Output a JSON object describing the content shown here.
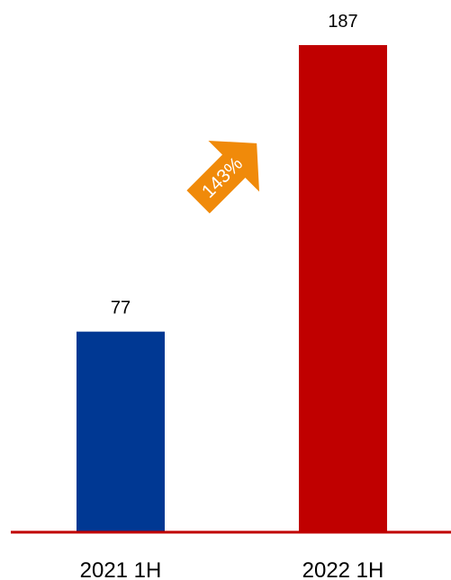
{
  "chart_data": {
    "type": "bar",
    "categories": [
      "2021 1H",
      "2022 1H"
    ],
    "values": [
      77,
      187
    ],
    "value_labels": [
      "77",
      "187"
    ],
    "bar_colors": [
      "#003893",
      "#C00000"
    ],
    "axis_color": "#C00000",
    "annotation": {
      "text": "143%",
      "color": "#F08A0A"
    },
    "ylim": [
      0,
      187
    ],
    "grid": false
  }
}
